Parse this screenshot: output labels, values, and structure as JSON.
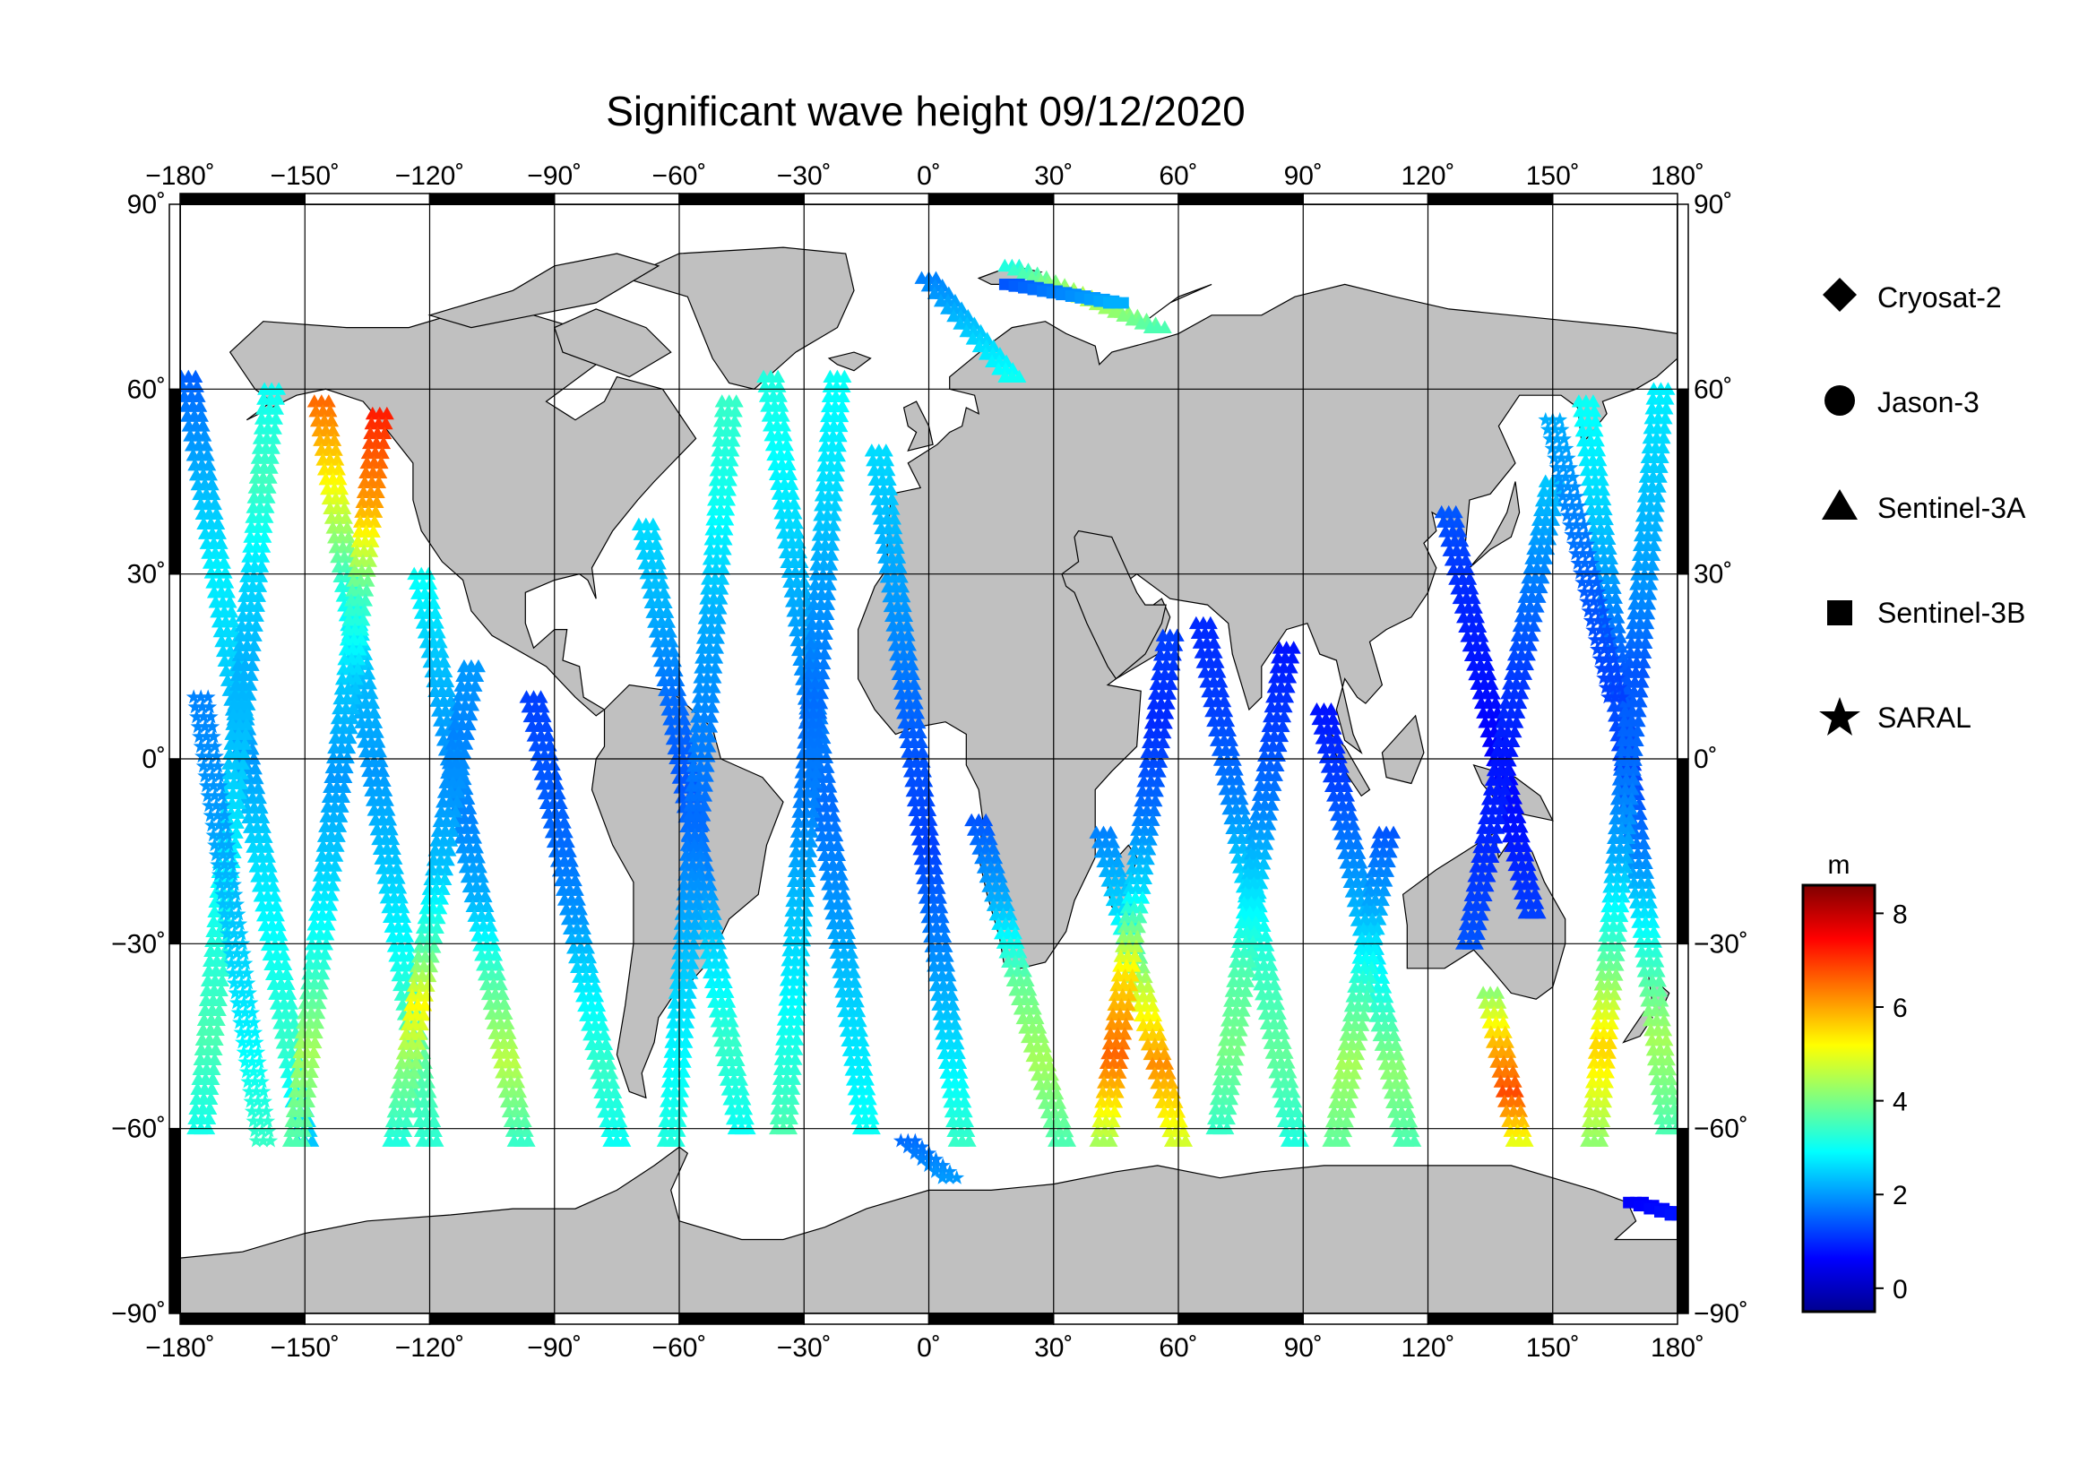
{
  "title": "Significant wave height 09/12/2020",
  "map": {
    "lon_range": [
      -180,
      180
    ],
    "lat_range": [
      -90,
      90
    ],
    "x_ticks": [
      -180,
      -150,
      -120,
      -90,
      -60,
      -30,
      0,
      30,
      60,
      90,
      120,
      150,
      180
    ],
    "y_ticks": [
      -90,
      -60,
      -30,
      0,
      30,
      60,
      90
    ],
    "x_tick_labels": [
      "−180˚",
      "−150˚",
      "−120˚",
      "−90˚",
      "−60˚",
      "−30˚",
      "0˚",
      "30˚",
      "60˚",
      "90˚",
      "120˚",
      "150˚",
      "180˚"
    ],
    "y_tick_labels": [
      "−90˚",
      "−60˚",
      "−30˚",
      "0˚",
      "30˚",
      "60˚",
      "90˚"
    ],
    "grid": true,
    "land_color": "#c0c0c0",
    "ocean_color": "#ffffff"
  },
  "legend": {
    "placement": "right",
    "items": [
      {
        "label": "Cryosat-2",
        "symbol": "diamond"
      },
      {
        "label": "Jason-3",
        "symbol": "circle"
      },
      {
        "label": "Sentinel-3A",
        "symbol": "triangle"
      },
      {
        "label": "Sentinel-3B",
        "symbol": "square"
      },
      {
        "label": "SARAL",
        "symbol": "star"
      }
    ]
  },
  "colorbar": {
    "unit": "m",
    "min": -0.5,
    "max": 8.6,
    "ticks": [
      0,
      2,
      4,
      6,
      8
    ],
    "tick_labels": [
      "0",
      "2",
      "4",
      "6",
      "8"
    ],
    "colormap": [
      "#00008f",
      "#0000ff",
      "#0080ff",
      "#00ffff",
      "#80ff80",
      "#ffff00",
      "#ff8000",
      "#ff0000",
      "#800000"
    ]
  },
  "chart_data": {
    "type": "scatter",
    "title": "Significant wave height 09/12/2020",
    "xlabel": "",
    "ylabel": "",
    "xlim": [
      -180,
      180
    ],
    "ylim": [
      -90,
      90
    ],
    "color_unit": "m",
    "series": [
      {
        "name": "Sentinel-3A",
        "symbol": "triangle",
        "tracks": [
          {
            "lon0": -178,
            "lat0": 62,
            "lon1": -150,
            "lat1": -62,
            "values": [
              1.5,
              2.2,
              2.8,
              2.5,
              2.0,
              2.6,
              3.0,
              3.4,
              2.4
            ]
          },
          {
            "lon0": -158,
            "lat0": 60,
            "lon1": -175,
            "lat1": -60,
            "values": [
              3.0,
              3.5,
              2.6,
              2.2,
              2.4,
              2.8,
              3.2,
              3.6,
              3.1
            ]
          },
          {
            "lon0": -146,
            "lat0": 58,
            "lon1": -120,
            "lat1": -62,
            "values": [
              6.5,
              5.0,
              3.2,
              2.3,
              2.0,
              2.4,
              3.0,
              3.8,
              3.3
            ]
          },
          {
            "lon0": -132,
            "lat0": 56,
            "lon1": -152,
            "lat1": -62,
            "values": [
              7.2,
              6.0,
              3.5,
              2.4,
              2.0,
              2.5,
              3.2,
              4.4,
              3.6
            ]
          },
          {
            "lon0": -122,
            "lat0": 30,
            "lon1": -98,
            "lat1": -62,
            "values": [
              3.0,
              2.4,
              2.0,
              1.8,
              2.2,
              3.6,
              4.6,
              3.4
            ]
          },
          {
            "lon0": -110,
            "lat0": 15,
            "lon1": -128,
            "lat1": -62,
            "values": [
              2.0,
              1.8,
              2.0,
              2.4,
              3.4,
              5.2,
              4.0,
              3.2
            ]
          },
          {
            "lon0": -95,
            "lat0": 10,
            "lon1": -75,
            "lat1": -62,
            "values": [
              1.2,
              1.4,
              1.6,
              2.0,
              2.8,
              3.4,
              3.0
            ]
          },
          {
            "lon0": -68,
            "lat0": 38,
            "lon1": -45,
            "lat1": -60,
            "values": [
              2.6,
              2.2,
              1.6,
              1.4,
              1.8,
              2.6,
              3.4,
              3.0
            ]
          },
          {
            "lon0": -48,
            "lat0": 58,
            "lon1": -62,
            "lat1": -62,
            "values": [
              3.4,
              3.0,
              2.2,
              1.8,
              1.6,
              2.2,
              2.8,
              3.2
            ]
          },
          {
            "lon0": -38,
            "lat0": 62,
            "lon1": -15,
            "lat1": -60,
            "values": [
              3.2,
              2.8,
              2.2,
              1.8,
              1.6,
              2.0,
              2.6,
              3.0
            ]
          },
          {
            "lon0": -22,
            "lat0": 62,
            "lon1": -35,
            "lat1": -60,
            "values": [
              3.0,
              2.6,
              2.0,
              1.6,
              1.8,
              2.4,
              3.0,
              3.6
            ]
          },
          {
            "lon0": -12,
            "lat0": 50,
            "lon1": 8,
            "lat1": -62,
            "values": [
              2.6,
              2.2,
              1.8,
              1.4,
              1.2,
              1.8,
              2.6,
              3.4
            ]
          },
          {
            "lon0": 0,
            "lat0": 78,
            "lon1": 20,
            "lat1": 62,
            "values": [
              1.8,
              2.4,
              3.0
            ]
          },
          {
            "lon0": 12,
            "lat0": -10,
            "lon1": 32,
            "lat1": -62,
            "values": [
              1.4,
              2.2,
              3.8,
              4.4,
              3.6
            ]
          },
          {
            "lon0": 42,
            "lat0": -12,
            "lon1": 60,
            "lat1": -62,
            "values": [
              1.8,
              2.6,
              4.6,
              6.2,
              4.8
            ]
          },
          {
            "lon0": 58,
            "lat0": 20,
            "lon1": 42,
            "lat1": -62,
            "values": [
              1.2,
              1.0,
              1.6,
              2.6,
              5.4,
              6.6,
              4.4
            ]
          },
          {
            "lon0": 66,
            "lat0": 22,
            "lon1": 88,
            "lat1": -62,
            "values": [
              1.0,
              1.2,
              1.8,
              2.6,
              3.4,
              3.8,
              3.2
            ]
          },
          {
            "lon0": 86,
            "lat0": 18,
            "lon1": 70,
            "lat1": -60,
            "values": [
              0.8,
              1.2,
              1.8,
              2.6,
              3.6,
              4.0,
              3.4
            ]
          },
          {
            "lon0": 95,
            "lat0": 8,
            "lon1": 115,
            "lat1": -62,
            "values": [
              0.8,
              1.2,
              1.8,
              2.4,
              3.2,
              4.2,
              3.6
            ]
          },
          {
            "lon0": 110,
            "lat0": -12,
            "lon1": 98,
            "lat1": -62,
            "values": [
              1.4,
              2.2,
              3.4,
              4.4,
              3.8
            ]
          },
          {
            "lon0": 125,
            "lat0": 40,
            "lon1": 145,
            "lat1": -25,
            "values": [
              1.4,
              1.0,
              0.8,
              0.6,
              0.8,
              1.2
            ]
          },
          {
            "lon0": 135,
            "lat0": -38,
            "lon1": 142,
            "lat1": -62,
            "values": [
              4.2,
              5.8,
              6.8,
              5.0
            ]
          },
          {
            "lon0": 150,
            "lat0": 45,
            "lon1": 130,
            "lat1": -30,
            "values": [
              2.4,
              1.8,
              1.2,
              0.8,
              1.0,
              1.4
            ]
          },
          {
            "lon0": 158,
            "lat0": 58,
            "lon1": 178,
            "lat1": -60,
            "values": [
              3.0,
              2.6,
              2.0,
              1.4,
              1.2,
              1.8,
              3.2,
              4.4,
              3.6
            ]
          },
          {
            "lon0": 176,
            "lat0": 60,
            "lon1": 160,
            "lat1": -62,
            "values": [
              2.8,
              2.4,
              2.0,
              1.4,
              1.6,
              2.2,
              3.6,
              5.6,
              4.2
            ]
          },
          {
            "lon0": 20,
            "lat0": 80,
            "lon1": 55,
            "lat1": 70,
            "values": [
              3.2,
              4.0,
              4.6,
              4.2,
              3.6
            ]
          }
        ]
      },
      {
        "name": "SARAL",
        "symbol": "star",
        "tracks": [
          {
            "lon0": -175,
            "lat0": 10,
            "lon1": -160,
            "lat1": -62,
            "values": [
              1.8,
              2.0,
              2.4,
              2.8,
              3.4
            ]
          },
          {
            "lon0": 150,
            "lat0": 55,
            "lon1": 165,
            "lat1": 10,
            "values": [
              2.2,
              1.8,
              1.4,
              1.2
            ]
          },
          {
            "lon0": -5,
            "lat0": -62,
            "lon1": 5,
            "lat1": -68,
            "values": [
              1.6,
              2.0
            ]
          }
        ]
      },
      {
        "name": "Sentinel-3B",
        "symbol": "square",
        "tracks": [
          {
            "lon0": 20,
            "lat0": 77,
            "lon1": 45,
            "lat1": 74,
            "values": [
              1.4,
              1.8,
              2.2
            ]
          },
          {
            "lon0": 170,
            "lat0": -72,
            "lon1": 180,
            "lat1": -74,
            "values": [
              0.6,
              0.8
            ]
          }
        ]
      }
    ]
  }
}
